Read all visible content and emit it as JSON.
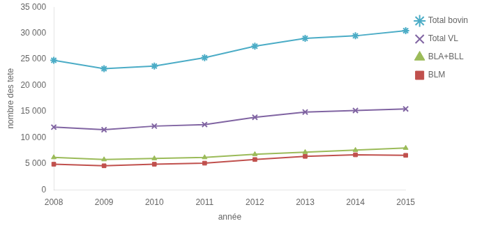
{
  "chart_data": {
    "type": "line",
    "xlabel": "année",
    "ylabel": "nombre des tete",
    "categories": [
      2008,
      2009,
      2010,
      2011,
      2012,
      2013,
      2014,
      2015
    ],
    "series": [
      {
        "name": "Total bovin",
        "color": "#4BACC6",
        "marker": "star",
        "values": [
          24800,
          23200,
          23700,
          25300,
          27500,
          29000,
          29500,
          30500
        ]
      },
      {
        "name": "Total VL",
        "color": "#8064A2",
        "marker": "x",
        "values": [
          12000,
          11500,
          12200,
          12500,
          13900,
          14900,
          15200,
          15500
        ]
      },
      {
        "name": "BLA+BLL",
        "color": "#9BBB59",
        "marker": "triangle",
        "values": [
          6200,
          5800,
          6000,
          6200,
          6800,
          7200,
          7600,
          8000
        ]
      },
      {
        "name": "BLM",
        "color": "#C0504D",
        "marker": "square",
        "values": [
          4900,
          4600,
          4900,
          5100,
          5800,
          6400,
          6700,
          6600
        ]
      }
    ],
    "ylim": [
      0,
      35000
    ],
    "yticks": [
      0,
      {
        "value": 5000,
        "label": "5 000"
      },
      {
        "value": 10000,
        "label": "10 000"
      },
      {
        "value": 15000,
        "label": "15 000"
      },
      {
        "value": 20000,
        "label": "20 000"
      },
      {
        "value": 25000,
        "label": "25 000"
      },
      {
        "value": 30000,
        "label": "30 000"
      },
      {
        "value": 35000,
        "label": "35 000"
      }
    ],
    "grid": false,
    "legend": "right"
  }
}
